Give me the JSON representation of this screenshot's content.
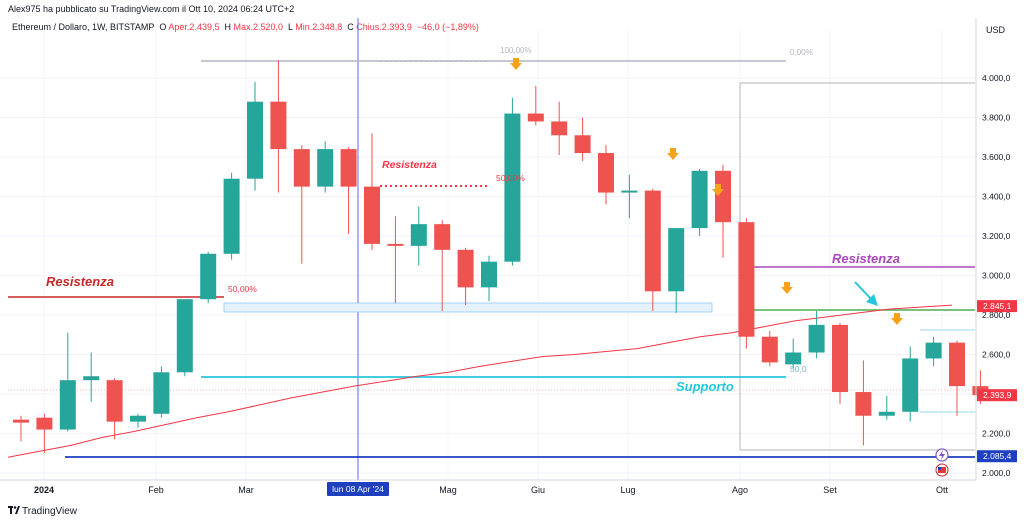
{
  "header": {
    "author_line": "Alex975 ha pubblicato su TradingView.com il Ott 10, 2024 06:24 UTC+2"
  },
  "info": {
    "symbol": "Ethereum / Dollaro, 1W, BITSTAMP",
    "open_label": "O",
    "open": "Aper.2.439,5",
    "high_label": "H",
    "high": "Max.2.520,0",
    "low_label": "L",
    "low": "Min.2.348,8",
    "close_label": "C",
    "close": "Chius.2.393,9",
    "change": "−46,0 (−1,89%)"
  },
  "footer": {
    "brand": "TradingView"
  },
  "colors": {
    "up": "#26a69a",
    "down": "#ef5350",
    "ma": "#f23645",
    "fib_blue_fill": "#e3f2fd",
    "cyan": "#26c6da",
    "purple": "#ab47bc",
    "green": "#4caf50",
    "dark_red": "#c62828",
    "navy": "#1e3fbf",
    "orange_arrow": "#f7a21b"
  },
  "chart_data": {
    "type": "candlestick",
    "currency": "USD",
    "y_ticks": [
      "4.000,0",
      "3.800,0",
      "3.600,0",
      "3.400,0",
      "3.200,0",
      "3.000,0",
      "2.800,0",
      "2.600,0",
      "2.400,0",
      "2.200,0",
      "2.000,0"
    ],
    "x_ticks": [
      "2024",
      "Feb",
      "Mar",
      "Apr",
      "Mag",
      "Giu",
      "Lug",
      "Ago",
      "Set",
      "Ott"
    ],
    "crosshair_label": "lun 08 Apr '24",
    "candles": [
      {
        "o": 2270,
        "h": 2290,
        "l": 2160,
        "c": 2255
      },
      {
        "o": 2280,
        "h": 2300,
        "l": 2100,
        "c": 2220
      },
      {
        "o": 2220,
        "h": 2710,
        "l": 2210,
        "c": 2470
      },
      {
        "o": 2470,
        "h": 2610,
        "l": 2360,
        "c": 2490
      },
      {
        "o": 2470,
        "h": 2480,
        "l": 2170,
        "c": 2260
      },
      {
        "o": 2260,
        "h": 2300,
        "l": 2230,
        "c": 2290
      },
      {
        "o": 2300,
        "h": 2540,
        "l": 2280,
        "c": 2510
      },
      {
        "o": 2510,
        "h": 2880,
        "l": 2490,
        "c": 2880
      },
      {
        "o": 2880,
        "h": 3120,
        "l": 2860,
        "c": 3110
      },
      {
        "o": 3110,
        "h": 3520,
        "l": 3080,
        "c": 3490
      },
      {
        "o": 3490,
        "h": 3980,
        "l": 3430,
        "c": 3880
      },
      {
        "o": 3880,
        "h": 4090,
        "l": 3420,
        "c": 3640
      },
      {
        "o": 3640,
        "h": 3660,
        "l": 3060,
        "c": 3450
      },
      {
        "o": 3450,
        "h": 3680,
        "l": 3420,
        "c": 3640
      },
      {
        "o": 3640,
        "h": 3650,
        "l": 3210,
        "c": 3450
      },
      {
        "o": 3450,
        "h": 3720,
        "l": 3130,
        "c": 3160
      },
      {
        "o": 3160,
        "h": 3300,
        "l": 2860,
        "c": 3150
      },
      {
        "o": 3150,
        "h": 3350,
        "l": 3050,
        "c": 3260
      },
      {
        "o": 3260,
        "h": 3280,
        "l": 2820,
        "c": 3130
      },
      {
        "o": 3130,
        "h": 3140,
        "l": 2850,
        "c": 2940
      },
      {
        "o": 2940,
        "h": 3100,
        "l": 2870,
        "c": 3070
      },
      {
        "o": 3070,
        "h": 3900,
        "l": 3050,
        "c": 3820
      },
      {
        "o": 3820,
        "h": 3960,
        "l": 3760,
        "c": 3780
      },
      {
        "o": 3780,
        "h": 3880,
        "l": 3610,
        "c": 3710
      },
      {
        "o": 3710,
        "h": 3800,
        "l": 3580,
        "c": 3620
      },
      {
        "o": 3620,
        "h": 3660,
        "l": 3360,
        "c": 3420
      },
      {
        "o": 3420,
        "h": 3510,
        "l": 3290,
        "c": 3430
      },
      {
        "o": 3430,
        "h": 3440,
        "l": 2820,
        "c": 2920
      },
      {
        "o": 2920,
        "h": 3240,
        "l": 2810,
        "c": 3240
      },
      {
        "o": 3240,
        "h": 3540,
        "l": 3200,
        "c": 3530
      },
      {
        "o": 3530,
        "h": 3560,
        "l": 3090,
        "c": 3270
      },
      {
        "o": 3270,
        "h": 3290,
        "l": 2630,
        "c": 2690
      },
      {
        "o": 2690,
        "h": 2720,
        "l": 2540,
        "c": 2560
      },
      {
        "o": 2550,
        "h": 2680,
        "l": 2530,
        "c": 2610
      },
      {
        "o": 2610,
        "h": 2820,
        "l": 2580,
        "c": 2750
      },
      {
        "o": 2750,
        "h": 2760,
        "l": 2350,
        "c": 2410
      },
      {
        "o": 2410,
        "h": 2570,
        "l": 2140,
        "c": 2290
      },
      {
        "o": 2290,
        "h": 2390,
        "l": 2270,
        "c": 2310
      },
      {
        "o": 2310,
        "h": 2640,
        "l": 2260,
        "c": 2580
      },
      {
        "o": 2580,
        "h": 2690,
        "l": 2540,
        "c": 2660
      },
      {
        "o": 2660,
        "h": 2670,
        "l": 2290,
        "c": 2440
      },
      {
        "o": 2440,
        "h": 2520,
        "l": 2350,
        "c": 2394
      }
    ],
    "ma_series": [
      2080,
      2110,
      2140,
      2180,
      2210,
      2245,
      2280,
      2310,
      2345,
      2380,
      2410,
      2440,
      2465,
      2490,
      2510,
      2540,
      2565,
      2590,
      2600,
      2615,
      2630,
      2660,
      2690,
      2710,
      2740,
      2770,
      2790,
      2810,
      2830,
      2840,
      2850
    ],
    "price_labels": [
      {
        "text": "2.845,1",
        "value": 2845,
        "color": "#f23645"
      },
      {
        "text": "2.393,9",
        "value": 2394,
        "color": "#f23645"
      },
      {
        "text": "2.085,4",
        "value": 2085,
        "color": "#1e3fbf"
      }
    ],
    "annotations": {
      "resistenza_left": "Resistenza",
      "resistenza_mid": "Resistenza",
      "resistenza_right": "Resistenza",
      "supporto": "Supporto",
      "fib_100": "100,00%",
      "fib_50_left": "50,00%",
      "fib_50_mid": "50,00%",
      "fib_0": "0,00%",
      "fib_50_right": "50,0"
    }
  }
}
